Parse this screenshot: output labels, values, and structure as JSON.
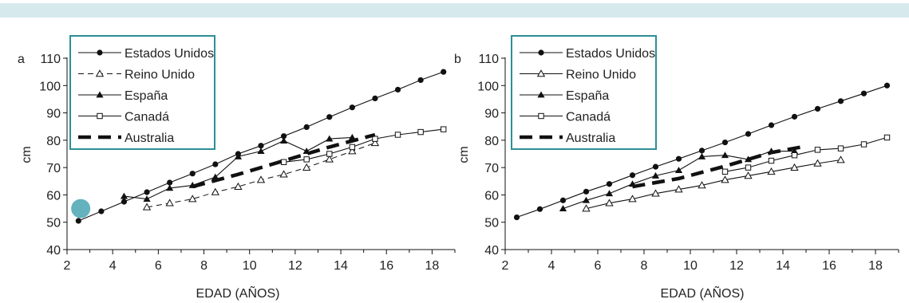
{
  "colors": {
    "top_bar": "#d6eaee",
    "legend_border": "#2e8e96",
    "marker_dot": "#63b2be",
    "ink": "#111111"
  },
  "chart_data": [
    {
      "type": "line",
      "panel_label": "a",
      "xlabel": "EDAD (AÑOS)",
      "ylabel": "cm",
      "xlim": [
        2,
        19
      ],
      "ylim": [
        40,
        110
      ],
      "xticks": [
        2,
        4,
        6,
        8,
        10,
        12,
        14,
        16,
        18
      ],
      "yticks": [
        40,
        50,
        60,
        70,
        80,
        90,
        100,
        110
      ],
      "grid": false,
      "legend_position": "top-left",
      "highlight_point": {
        "x": 2.6,
        "y": 55
      },
      "series": [
        {
          "name": "Estados Unidos",
          "marker": "filled-circle",
          "dash": "solid",
          "x": [
            2.5,
            3.5,
            4.5,
            5.5,
            6.5,
            7.5,
            8.5,
            9.5,
            10.5,
            11.5,
            12.5,
            13.5,
            14.5,
            15.5,
            16.5,
            17.5,
            18.5
          ],
          "y": [
            50.5,
            54,
            57.5,
            61,
            64.5,
            67.8,
            71.2,
            75,
            78,
            81.5,
            84.8,
            88.5,
            92,
            95.3,
            98.5,
            102,
            105
          ]
        },
        {
          "name": "Reino Unido",
          "marker": "open-triangle",
          "dash": "dashed",
          "x": [
            5.5,
            6.5,
            7.5,
            8.5,
            9.5,
            10.5,
            11.5,
            12.5,
            13.5,
            14.5,
            15.5
          ],
          "y": [
            55.5,
            57,
            58.5,
            61,
            63,
            65.5,
            67.5,
            70,
            73,
            76,
            79
          ]
        },
        {
          "name": "España",
          "marker": "filled-triangle",
          "dash": "solid",
          "x": [
            4.5,
            5.5,
            6.5,
            7.5,
            8.5,
            9.5,
            10.5,
            11.5,
            12.5,
            13.5,
            14.5
          ],
          "y": [
            59.5,
            58.5,
            62.5,
            63.5,
            66.5,
            74,
            76,
            79.8,
            76,
            80.5,
            81
          ]
        },
        {
          "name": "Canadá",
          "marker": "open-square",
          "dash": "solid",
          "x": [
            11.5,
            12.5,
            13.5,
            14.5,
            15.5,
            16.5,
            17.5,
            18.5
          ],
          "y": [
            72,
            73,
            75,
            77.5,
            80.5,
            82,
            83,
            84
          ]
        },
        {
          "name": "Australia",
          "marker": "none",
          "dash": "thick-dash",
          "x": [
            7.5,
            9.5,
            11.5,
            13.5,
            15.5
          ],
          "y": [
            63,
            67.5,
            72.5,
            77.5,
            82
          ]
        }
      ]
    },
    {
      "type": "line",
      "panel_label": "b",
      "xlabel": "EDAD (AÑOS)",
      "ylabel": "cm",
      "xlim": [
        2,
        19
      ],
      "ylim": [
        40,
        110
      ],
      "xticks": [
        2,
        4,
        6,
        8,
        10,
        12,
        14,
        16,
        18
      ],
      "yticks": [
        40,
        50,
        60,
        70,
        80,
        90,
        100,
        110
      ],
      "grid": false,
      "legend_position": "top-left",
      "series": [
        {
          "name": "Estados Unidos",
          "marker": "filled-circle",
          "dash": "solid",
          "x": [
            2.5,
            3.5,
            4.5,
            5.5,
            6.5,
            7.5,
            8.5,
            9.5,
            10.5,
            11.5,
            12.5,
            13.5,
            14.5,
            15.5,
            16.5,
            17.5,
            18.5
          ],
          "y": [
            51.8,
            54.8,
            58,
            61.2,
            64,
            67.2,
            70.3,
            73.2,
            76.2,
            79.2,
            82.3,
            85.5,
            88.6,
            91.5,
            94.3,
            97.1,
            100
          ]
        },
        {
          "name": "Reino Unido",
          "marker": "open-triangle",
          "dash": "solid",
          "x": [
            5.5,
            6.5,
            7.5,
            8.5,
            9.5,
            10.5,
            11.5,
            12.5,
            13.5,
            14.5,
            15.5,
            16.5
          ],
          "y": [
            55,
            57,
            58.5,
            60.5,
            62,
            63.5,
            65.5,
            67,
            68.5,
            70,
            71.5,
            72.8
          ]
        },
        {
          "name": "España",
          "marker": "filled-triangle",
          "dash": "solid",
          "x": [
            4.5,
            5.5,
            6.5,
            7.5,
            8.5,
            9.5,
            10.5,
            11.5,
            12.5,
            13.5,
            14.5
          ],
          "y": [
            55,
            58,
            60.5,
            64,
            67,
            69,
            74,
            74.5,
            73,
            76,
            76
          ]
        },
        {
          "name": "Canadá",
          "marker": "open-square",
          "dash": "solid",
          "x": [
            11.5,
            12.5,
            13.5,
            14.5,
            15.5,
            16.5,
            17.5,
            18.5
          ],
          "y": [
            68.5,
            70,
            72.5,
            74.5,
            76.5,
            77,
            78.5,
            81
          ]
        },
        {
          "name": "Australia",
          "marker": "none",
          "dash": "thick-dash",
          "x": [
            7.5,
            9.5,
            11.5,
            13.5,
            14.8
          ],
          "y": [
            63,
            66,
            70.5,
            75.5,
            77.5
          ]
        }
      ]
    }
  ]
}
